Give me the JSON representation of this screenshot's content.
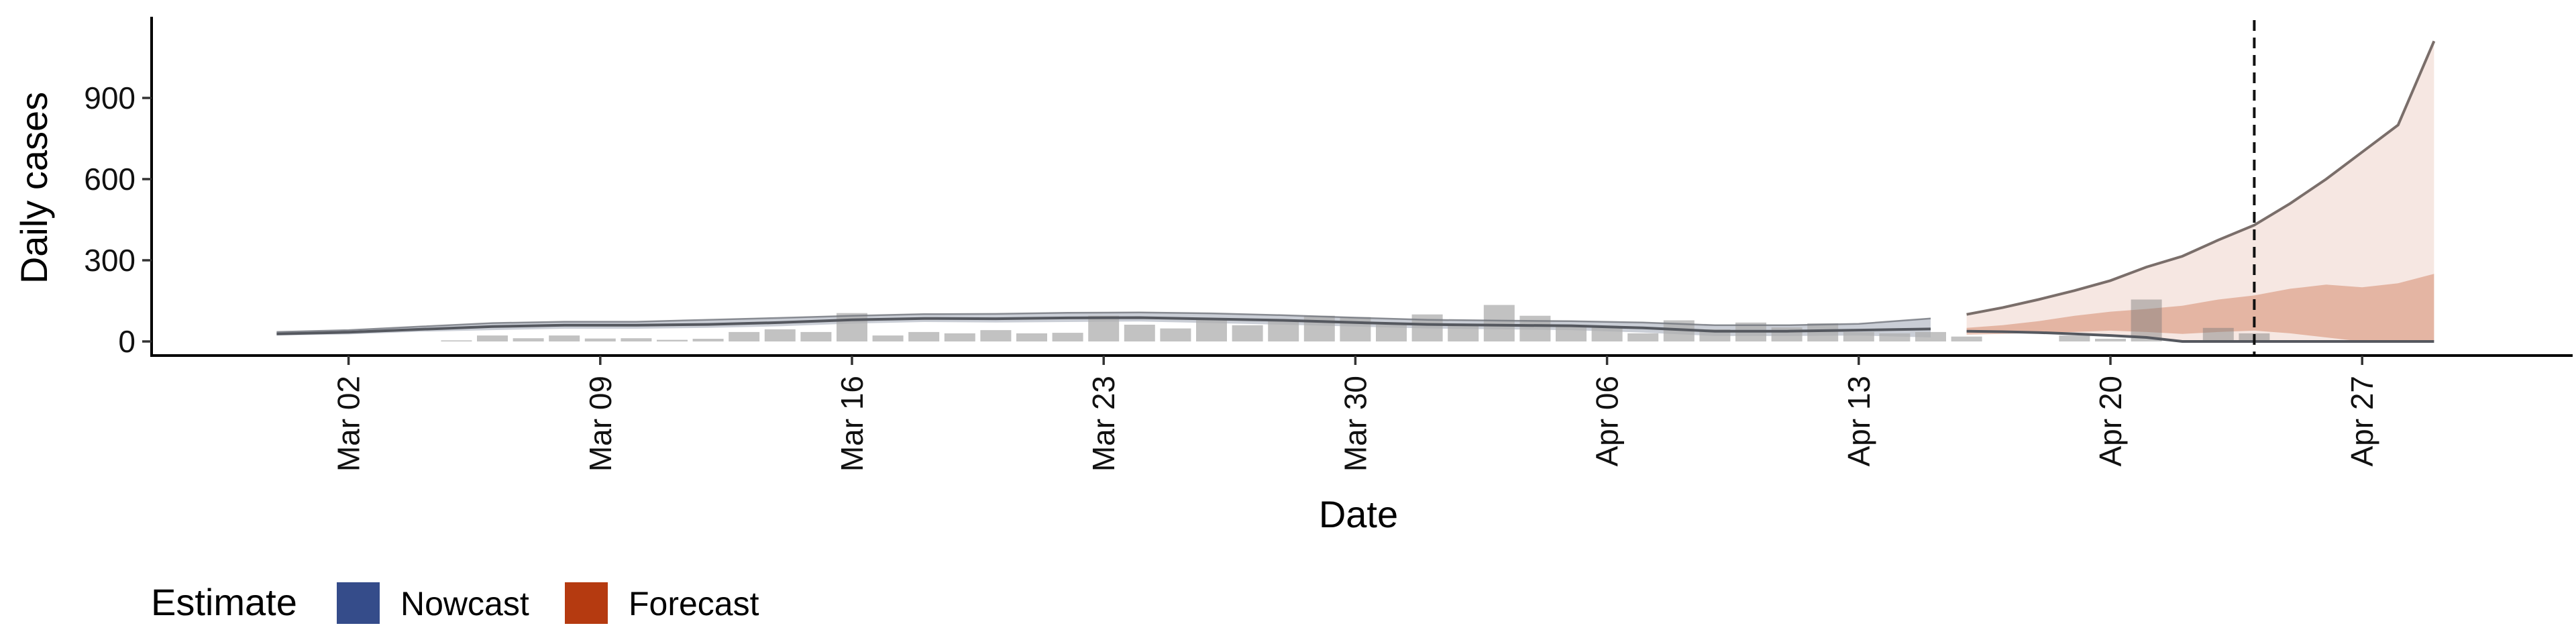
{
  "chart_data": {
    "type": "bar",
    "title": "",
    "xlabel": "Date",
    "ylabel": "Daily cases",
    "ylim": [
      -50,
      1150
    ],
    "yticks": [
      0,
      300,
      600,
      900
    ],
    "xticks": [
      "Mar 02",
      "Mar 09",
      "Mar 16",
      "Mar 23",
      "Mar 30",
      "Apr 06",
      "Apr 13",
      "Apr 20",
      "Apr 27"
    ],
    "date_start": "Mar 01",
    "forecast_start_day": 47,
    "vline_day": 55,
    "legend": {
      "title": "Estimate",
      "position": "bottom-left",
      "items": [
        {
          "label": "Nowcast",
          "color": "#354C8A"
        },
        {
          "label": "Forecast",
          "color": "#B53A10"
        }
      ]
    },
    "bars": {
      "days": [
        5,
        6,
        7,
        8,
        9,
        10,
        11,
        12,
        13,
        14,
        15,
        16,
        17,
        18,
        19,
        20,
        21,
        22,
        23,
        24,
        25,
        26,
        27,
        28,
        29,
        30,
        31,
        32,
        33,
        34,
        35,
        36,
        37,
        38,
        39,
        40,
        41,
        42,
        43,
        44,
        45,
        46,
        47,
        48,
        49,
        50,
        51,
        52,
        53,
        54,
        55
      ],
      "values": [
        4,
        22,
        12,
        22,
        11,
        12,
        6,
        10,
        35,
        45,
        35,
        105,
        22,
        35,
        30,
        42,
        30,
        32,
        95,
        62,
        48,
        80,
        60,
        80,
        95,
        90,
        62,
        100,
        60,
        135,
        95,
        60,
        55,
        30,
        78,
        45,
        70,
        52,
        67,
        35,
        30,
        35,
        18,
        0,
        0,
        22,
        10,
        155,
        0,
        50,
        30
      ]
    },
    "nowcast": {
      "days": [
        0,
        2,
        4,
        6,
        8,
        10,
        12,
        14,
        16,
        18,
        20,
        22,
        24,
        26,
        28,
        30,
        32,
        34,
        36,
        38,
        40,
        42,
        44,
        46
      ],
      "median": [
        28,
        34,
        45,
        55,
        60,
        60,
        63,
        70,
        80,
        85,
        84,
        87,
        88,
        83,
        78,
        70,
        63,
        60,
        58,
        50,
        38,
        38,
        42,
        46
      ],
      "upper": [
        35,
        42,
        55,
        68,
        73,
        73,
        80,
        87,
        95,
        101,
        102,
        106,
        107,
        104,
        97,
        88,
        80,
        77,
        75,
        70,
        60,
        60,
        65,
        85
      ],
      "lower": [
        22,
        26,
        36,
        42,
        47,
        47,
        50,
        56,
        66,
        72,
        70,
        72,
        74,
        68,
        62,
        55,
        48,
        45,
        42,
        33,
        20,
        20,
        22,
        15
      ]
    },
    "forecast": {
      "days": [
        47,
        48,
        49,
        50,
        51,
        52,
        53,
        54,
        55,
        56,
        57,
        58,
        59,
        60
      ],
      "median": [
        38,
        36,
        33,
        28,
        22,
        15,
        0,
        0,
        0,
        0,
        0,
        0,
        0,
        0
      ],
      "upper": [
        100,
        125,
        155,
        188,
        225,
        275,
        315,
        375,
        430,
        510,
        600,
        700,
        800,
        1110
      ],
      "inner_upper": [
        50,
        60,
        75,
        95,
        110,
        120,
        132,
        155,
        170,
        195,
        210,
        200,
        215,
        250
      ],
      "inner_lower": [
        25,
        28,
        32,
        35,
        40,
        35,
        28,
        35,
        40,
        30,
        15,
        0,
        0,
        0
      ]
    }
  }
}
